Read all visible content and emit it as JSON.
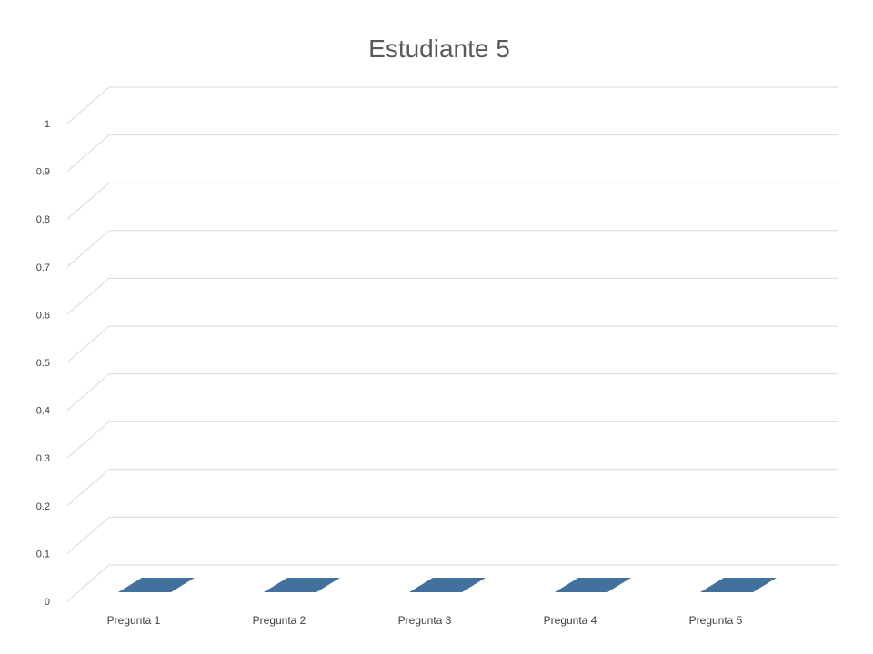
{
  "chart_data": {
    "type": "bar",
    "title": "Estudiante 5",
    "categories": [
      "Pregunta 1",
      "Pregunta 2",
      "Pregunta 3",
      "Pregunta 4",
      "Pregunta 5"
    ],
    "values": [
      0,
      0,
      0,
      0,
      0
    ],
    "xlabel": "",
    "ylabel": "",
    "ylim": [
      0,
      1
    ],
    "yticks": [
      "0",
      "0.1",
      "0.2",
      "0.3",
      "0.4",
      "0.5",
      "0.6",
      "0.7",
      "0.8",
      "0.9",
      "1"
    ],
    "grid": true,
    "style": "3d-column",
    "colors": {
      "bar": "#41719c",
      "grid": "#d9d9d9",
      "text": "#404040",
      "title": "#595959"
    }
  }
}
